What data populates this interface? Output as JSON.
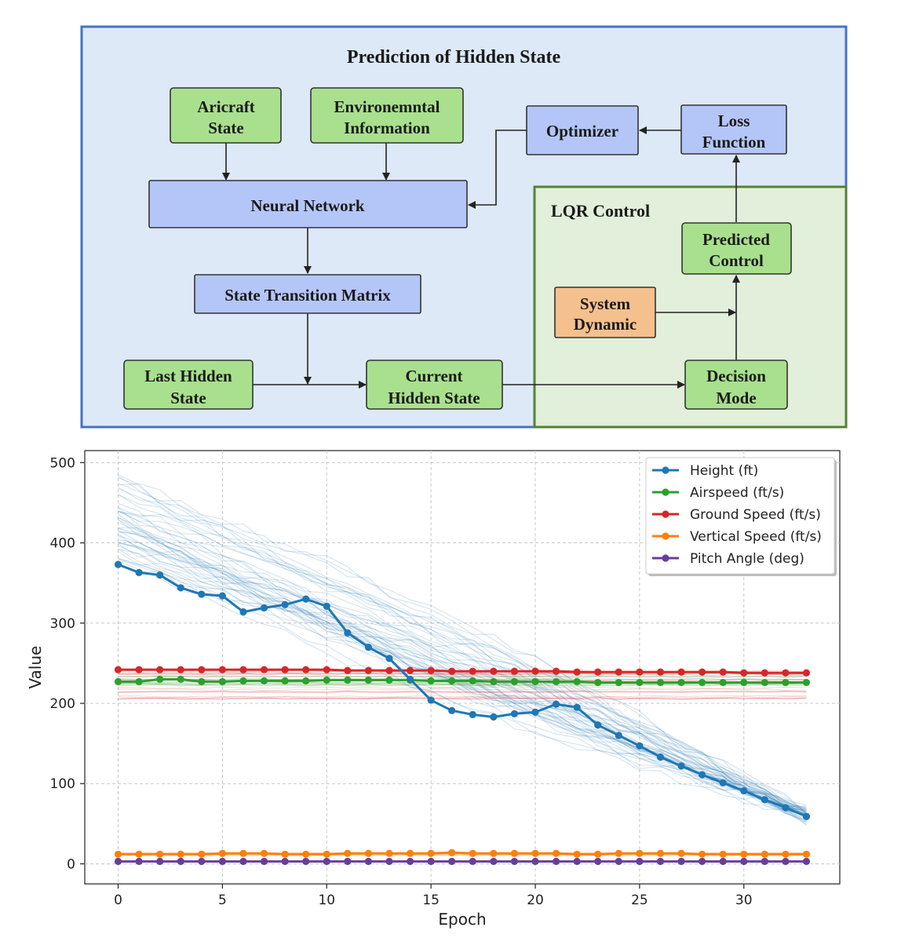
{
  "diagram": {
    "title": "Prediction of Hidden State",
    "lqr_title": "LQR Control",
    "nodes": {
      "aircraft": [
        "Aricraft",
        "State"
      ],
      "env": [
        "Environemntal",
        "Information"
      ],
      "optimizer": [
        "Optimizer"
      ],
      "loss": [
        "Loss",
        "Function"
      ],
      "nn": [
        "Neural Network"
      ],
      "predicted": [
        "Predicted",
        "Control"
      ],
      "stm": [
        "State Transition Matrix"
      ],
      "system": [
        "System",
        "Dynamic"
      ],
      "last": [
        "Last Hidden",
        "State"
      ],
      "current": [
        "Current",
        "Hidden State"
      ],
      "decision": [
        "Decision",
        "Mode"
      ]
    },
    "colors": {
      "outer_bg": "#dde9f6",
      "outer_border": "#4472c4",
      "lqr_bg": "#e2efda",
      "lqr_border": "#548235",
      "green_node": "#a9e08e",
      "blue_node": "#b4c6f7",
      "orange_node": "#f4c08e"
    }
  },
  "chart_data": {
    "type": "line",
    "xlabel": "Epoch",
    "ylabel": "Value",
    "xlim": [
      -1.6,
      34.6
    ],
    "ylim": [
      -25,
      515
    ],
    "xticks": [
      0,
      5,
      10,
      15,
      20,
      25,
      30
    ],
    "yticks": [
      0,
      100,
      200,
      300,
      400,
      500
    ],
    "grid": true,
    "legend_position": "top-right",
    "x": [
      0,
      1,
      2,
      3,
      4,
      5,
      6,
      7,
      8,
      9,
      10,
      11,
      12,
      13,
      14,
      15,
      16,
      17,
      18,
      19,
      20,
      21,
      22,
      23,
      24,
      25,
      26,
      27,
      28,
      29,
      30,
      31,
      32,
      33
    ],
    "series": [
      {
        "name": "Height (ft)",
        "color": "#1f77b4",
        "values": [
          373,
          363,
          360,
          344,
          336,
          334,
          314,
          319,
          323,
          330,
          321,
          288,
          270,
          256,
          230,
          204,
          191,
          186,
          183,
          187,
          189,
          199,
          195,
          173,
          160,
          147,
          133,
          122,
          111,
          101,
          91,
          80,
          70,
          59
        ]
      },
      {
        "name": "Airspeed (ft/s)",
        "color": "#2ca02c",
        "values": [
          227,
          227,
          230,
          230,
          227,
          227,
          228,
          228,
          228,
          228,
          229,
          229,
          229,
          229,
          229,
          228,
          228,
          228,
          227,
          227,
          227,
          227,
          227,
          226,
          226,
          226,
          226,
          226,
          226,
          226,
          226,
          226,
          226,
          226
        ]
      },
      {
        "name": "Ground Speed (ft/s)",
        "color": "#d62728",
        "values": [
          242,
          242,
          242,
          242,
          242,
          242,
          242,
          242,
          242,
          242,
          242,
          241,
          241,
          241,
          241,
          241,
          240,
          240,
          240,
          240,
          240,
          240,
          239,
          239,
          239,
          239,
          239,
          239,
          239,
          239,
          238,
          238,
          238,
          238
        ]
      },
      {
        "name": "Vertical Speed (ft/s)",
        "color": "#ff7f0e",
        "values": [
          12,
          12,
          12,
          12,
          12,
          13,
          13,
          13,
          12,
          12,
          12,
          13,
          13,
          13,
          13,
          13,
          14,
          13,
          13,
          13,
          13,
          13,
          12,
          12,
          13,
          13,
          13,
          13,
          12,
          12,
          12,
          12,
          12,
          12
        ]
      },
      {
        "name": "Pitch Angle (deg)",
        "color": "#6a3d9a",
        "values": [
          3,
          3,
          3,
          3,
          3,
          3,
          3,
          3,
          3,
          3,
          3,
          3,
          3,
          3,
          3,
          3,
          3,
          3,
          3,
          3,
          3,
          3,
          3,
          3,
          3,
          3,
          3,
          3,
          3,
          3,
          3,
          3,
          3,
          3
        ]
      }
    ]
  }
}
